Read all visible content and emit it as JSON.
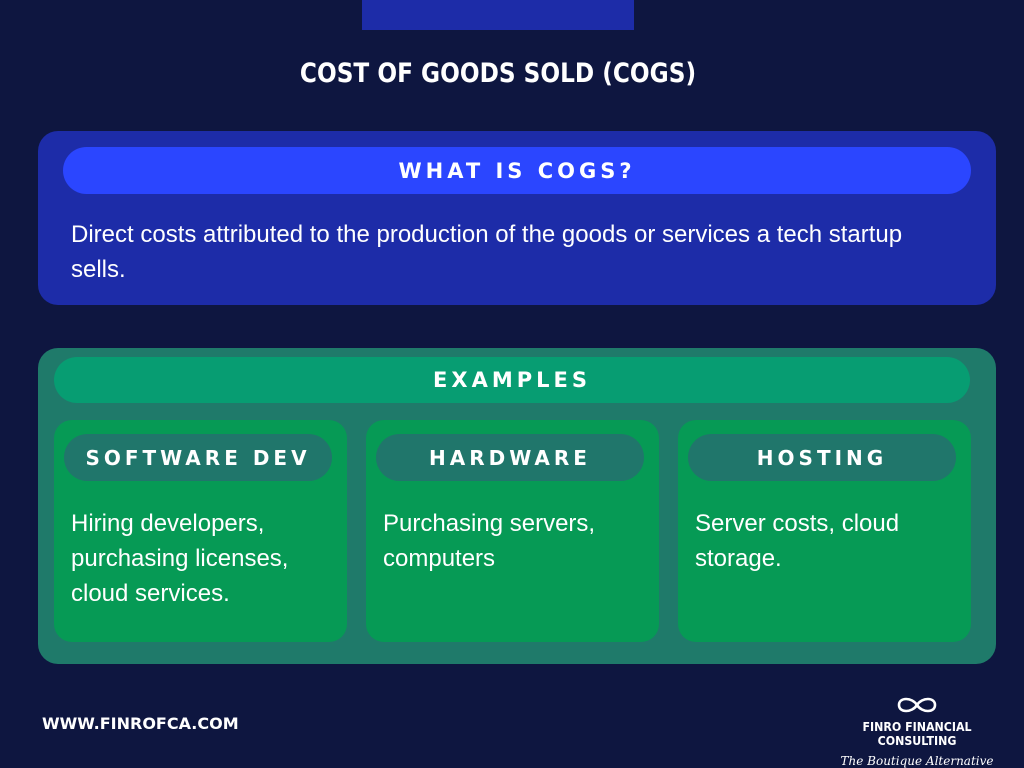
{
  "title": "COST OF GOODS SOLD (COGS)",
  "definition": {
    "header": "WHAT IS COGS?",
    "text": "Direct costs attributed to the production of the goods or services a tech startup sells."
  },
  "examples": {
    "header": "EXAMPLES",
    "items": [
      {
        "title": "SOFTWARE DEV",
        "text": "Hiring developers, purchasing licenses, cloud services."
      },
      {
        "title": "HARDWARE",
        "text": "Purchasing servers, computers"
      },
      {
        "title": "HOSTING",
        "text": "Server costs, cloud storage."
      }
    ]
  },
  "footer": {
    "website": "WWW.FINROFCA.COM",
    "brand_name": "FINRO FINANCIAL CONSULTING",
    "brand_tagline": "The Boutique Alternative",
    "logo_icon": "infinity-icon"
  },
  "colors": {
    "background": "#0e1640",
    "definition_card": "#1d2ca8",
    "definition_header": "#2b46ff",
    "examples_card": "#1f7a6a",
    "examples_header": "#079d72",
    "example_column": "#069a55",
    "example_column_header": "#20766b"
  }
}
